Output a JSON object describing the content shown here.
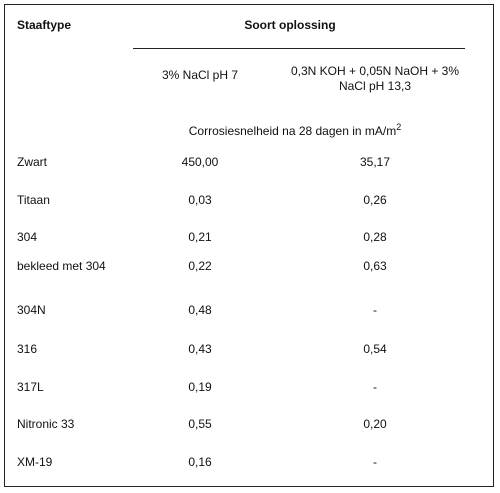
{
  "table": {
    "header": {
      "first": "Staaftype",
      "group": "Soort oplossing"
    },
    "columns": [
      "3% NaCl pH 7",
      "0,3N KOH + 0,05N NaOH + 3% NaCl pH 13,3"
    ],
    "unit": {
      "text": "Corrosiesnelheid na 28 dagen in mA/m",
      "sup": "2"
    },
    "rows": [
      [
        "Zwart",
        "450,00",
        "35,17"
      ],
      [
        "Titaan",
        "0,03",
        "0,26"
      ],
      [
        "304",
        "0,21",
        "0,28"
      ],
      [
        "bekleed met 304",
        "0,22",
        "0,63"
      ],
      [
        "304N",
        "0,48",
        "-"
      ],
      [
        "316",
        "0,43",
        "0,54"
      ],
      [
        "317L",
        "0,19",
        "-"
      ],
      [
        "Nitronic 33",
        "0,55",
        "0,20"
      ],
      [
        "XM-19",
        "0,16",
        "-"
      ]
    ]
  }
}
